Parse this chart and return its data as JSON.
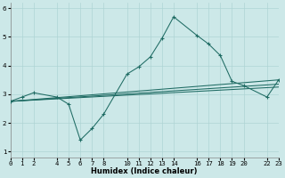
{
  "xlabel": "Humidex (Indice chaleur)",
  "bg_color": "#cce8e8",
  "grid_color": "#aed4d4",
  "line_color": "#1e6b63",
  "line1_x": [
    0,
    1,
    2,
    4,
    5,
    6,
    7,
    8,
    10,
    11,
    12,
    13,
    14,
    16,
    17,
    18,
    19,
    20,
    22,
    23
  ],
  "line1_y": [
    2.75,
    2.9,
    3.05,
    2.9,
    2.65,
    1.4,
    1.8,
    2.3,
    3.7,
    3.95,
    4.3,
    4.95,
    5.7,
    5.05,
    4.75,
    4.35,
    3.45,
    3.3,
    2.9,
    3.5
  ],
  "line2_x": [
    0,
    23
  ],
  "line2_y": [
    2.75,
    3.5
  ],
  "line3_x": [
    0,
    23
  ],
  "line3_y": [
    2.75,
    3.35
  ],
  "line4_x": [
    0,
    23
  ],
  "line4_y": [
    2.75,
    3.25
  ],
  "xlim": [
    0,
    23
  ],
  "ylim": [
    0.8,
    6.2
  ],
  "xticks": [
    0,
    1,
    2,
    4,
    5,
    6,
    7,
    8,
    10,
    11,
    12,
    13,
    14,
    16,
    17,
    18,
    19,
    20,
    22,
    23
  ],
  "yticks": [
    1,
    2,
    3,
    4,
    5,
    6
  ],
  "xlabel_fontsize": 6.0,
  "tick_fontsize": 5.2
}
